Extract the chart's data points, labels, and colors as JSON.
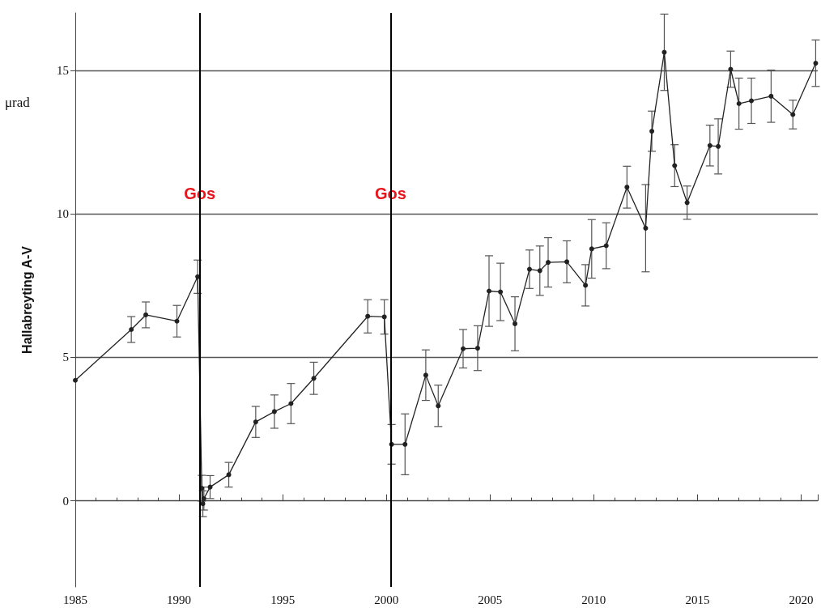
{
  "chart_data": {
    "type": "line",
    "ylabel": "Hallabreyting A-V",
    "annotations": [
      "μrad"
    ],
    "xlim": [
      1985,
      2020.8
    ],
    "ylim": [
      -3,
      17
    ],
    "xticks": [
      1985,
      1990,
      1995,
      2000,
      2005,
      2010,
      2015,
      2020
    ],
    "yticks": [
      0,
      5,
      10,
      15
    ],
    "grid": "y",
    "marker": "circle",
    "line_style": "solid",
    "ref_lines": [
      {
        "axis": "x",
        "value": 1991.0,
        "label": "Gos",
        "color": "#000000"
      },
      {
        "axis": "x",
        "value": 2000.2,
        "label": "Gos",
        "color": "#000000"
      }
    ],
    "series": [
      {
        "color": "#222222",
        "x": [
          1985,
          1987.7,
          1988.4,
          1989.9,
          1990.9,
          1991.1,
          1991.15,
          1991.2,
          1991.5,
          1992.4,
          1993.7,
          1994.6,
          1995.4,
          1996.5,
          1999.1,
          1999.9,
          2000.25,
          2000.9,
          2001.9,
          2002.5,
          2003.7,
          2004.4,
          2004.95,
          2005.5,
          2006.2,
          2006.9,
          2007.4,
          2007.8,
          2008.7,
          2009.6,
          2009.9,
          2010.6,
          2011.6,
          2012.5,
          2012.8,
          2013.4,
          2013.9,
          2014.5,
          2015.6,
          2016.0,
          2016.6,
          2017.0,
          2017.6,
          2018.55,
          2019.6,
          2020.7
        ],
        "values": [
          4.2,
          5.97,
          6.48,
          6.26,
          7.81,
          0.44,
          -0.1,
          0.08,
          0.48,
          0.91,
          2.75,
          3.11,
          3.39,
          4.27,
          6.43,
          6.41,
          1.97,
          1.97,
          4.38,
          3.31,
          5.3,
          5.32,
          7.31,
          7.28,
          6.17,
          8.07,
          8.02,
          8.31,
          8.33,
          7.51,
          8.78,
          8.89,
          10.93,
          9.5,
          12.88,
          15.63,
          11.68,
          10.39,
          12.38,
          12.35,
          15.04,
          13.84,
          13.94,
          14.1,
          13.46,
          15.25
        ],
        "errors": [
          null,
          0.45,
          0.45,
          0.55,
          0.58,
          0.45,
          0.45,
          0.4,
          0.4,
          0.43,
          0.54,
          0.58,
          0.7,
          0.56,
          0.58,
          0.6,
          0.69,
          1.06,
          0.88,
          0.72,
          0.67,
          0.78,
          1.23,
          1.0,
          0.94,
          0.67,
          0.86,
          0.86,
          0.73,
          0.72,
          1.02,
          0.8,
          0.73,
          1.52,
          0.7,
          1.33,
          0.73,
          0.58,
          0.71,
          0.96,
          0.63,
          0.89,
          0.79,
          0.91,
          0.5,
          0.81
        ]
      }
    ]
  }
}
